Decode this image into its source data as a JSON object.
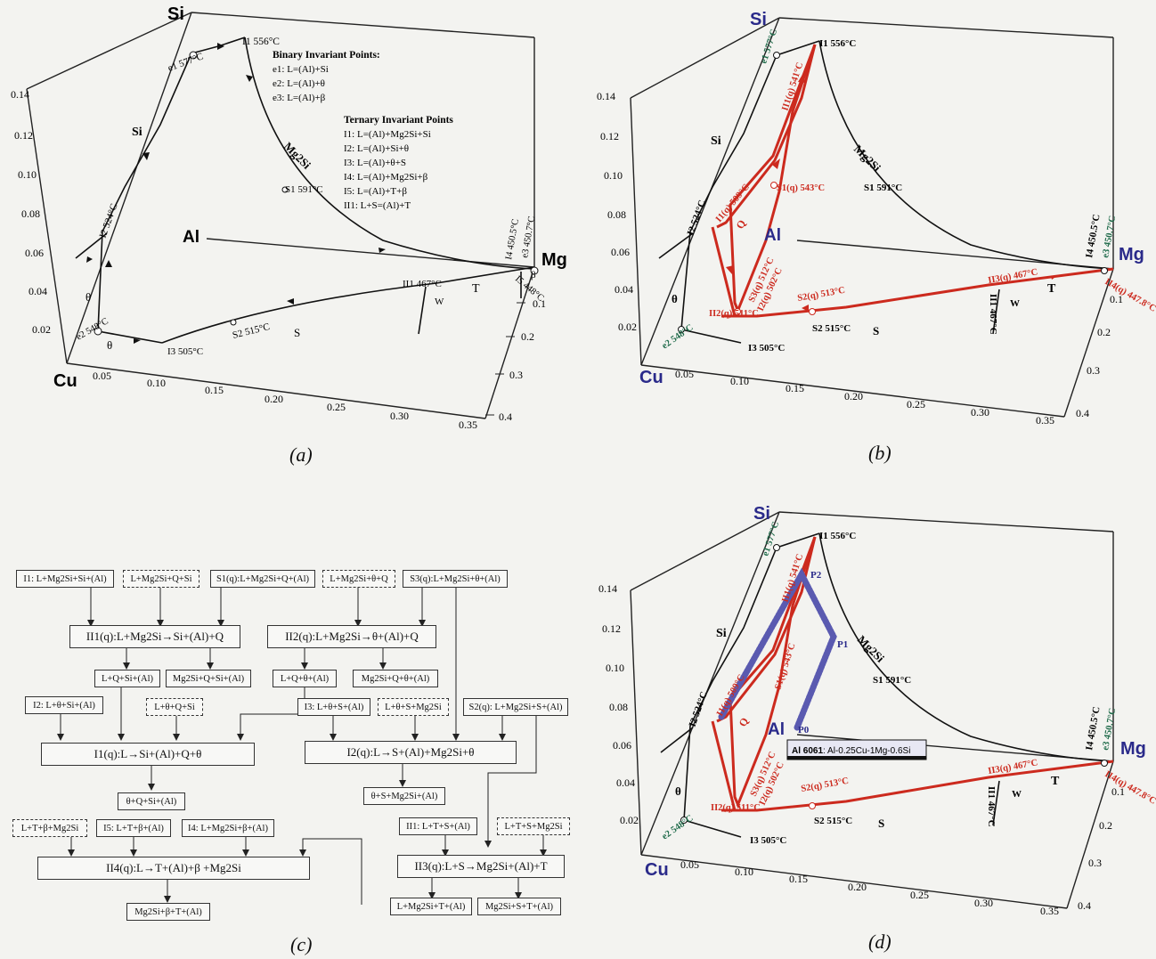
{
  "panel_a": {
    "caption": "(a)",
    "vertices": {
      "si": "Si",
      "cu": "Cu",
      "mg": "Mg",
      "al": "Al"
    },
    "si_axis_ticks": [
      "0.14",
      "0.12",
      "0.10",
      "0.08",
      "0.06",
      "0.04",
      "0.02"
    ],
    "cu_axis_ticks": [
      "0.05",
      "0.10",
      "0.15",
      "0.20",
      "0.25",
      "0.30",
      "0.35"
    ],
    "mg_axis_ticks": [
      "0.1",
      "0.2",
      "0.3",
      "0.4"
    ],
    "binary_title": "Binary Invariant Points:",
    "binary": [
      "e1: L=(Al)+Si",
      "e2: L=(Al)+θ",
      "e3: L=(Al)+β"
    ],
    "ternary_title": "Ternary Invariant Points",
    "ternary": [
      "I1: L=(Al)+Mg2Si+Si",
      "I2: L=(Al)+Si+θ",
      "I3: L=(Al)+θ+S",
      "I4: L=(Al)+Mg2Si+β",
      "I5: L=(Al)+T+β",
      "II1: L+S=(Al)+T"
    ],
    "points": {
      "i1": "I1 556°C",
      "e1": "e1 577°C",
      "i2": "I2 524°C",
      "e2": "e2 548°C",
      "i3": "I3 505°C",
      "s2": "S2 515°C",
      "s1": "S1 591°C",
      "ii1": "II1 467°C",
      "i4": "I4 450.5°C",
      "e3": "e3 450.7°C",
      "i5": "I5 448°C"
    },
    "phases": {
      "si": "Si",
      "mg2si": "Mg2Si",
      "theta": "θ",
      "theta2": "θ",
      "s": "S",
      "t": "T",
      "w": "W",
      "beta": "β"
    }
  },
  "panel_b": {
    "caption": "(b)",
    "vertices": {
      "si": "Si",
      "cu": "Cu",
      "mg": "Mg",
      "al": "Al"
    },
    "si_axis_ticks": [
      "0.14",
      "0.12",
      "0.10",
      "0.08",
      "0.06",
      "0.04",
      "0.02"
    ],
    "cu_axis_ticks": [
      "0.05",
      "0.10",
      "0.15",
      "0.20",
      "0.25",
      "0.30",
      "0.35"
    ],
    "mg_axis_ticks": [
      "0.1",
      "0.2",
      "0.3",
      "0.4"
    ],
    "black_labels": {
      "i1": "I1 556°C",
      "i2": "I2 524°C",
      "i3": "I3 505°C",
      "s2": "S2 515°C",
      "s1": "S1 591°C",
      "ii1": "II1 467°C",
      "i4": "I4 450.5°C",
      "si": "Si",
      "mg2si": "Mg2Si",
      "theta": "θ",
      "s": "S",
      "t": "T",
      "w": "W"
    },
    "green_labels": {
      "e1": "e1 577°C",
      "e2": "e2 548°C",
      "e3": "e3 450.7°C"
    },
    "red_labels": {
      "ii1q": "II1(q) 541°C",
      "s1q": "S1(q) 543°C",
      "i1q": "I1(q) 509°C",
      "ii2q": "II2(q) 511°C",
      "s3q": "S3(q) 512°C",
      "i2q": "I2(q) 502°C",
      "s2q": "S2(q) 513°C",
      "ii3q": "II3(q) 467°C",
      "ii4q": "II4(q) 447.8°C",
      "q": "Q"
    }
  },
  "panel_c": {
    "caption": "(c)",
    "row1": [
      "I1: L+Mg2Si+Si+(Al)",
      "L+Mg2Si+Q+Si",
      "S1(q):L+Mg2Si+Q+(Al)",
      "L+Mg2Si+θ+Q",
      "S3(q):L+Mg2Si+θ+(Al)"
    ],
    "reaction_ii1q": "II1(q):L+Mg2Si→Si+(Al)+Q",
    "reaction_ii2q": "II2(q):L+Mg2Si→θ+(Al)+Q",
    "row3": [
      "L+Q+Si+(Al)",
      "Mg2Si+Q+Si+(Al)",
      "L+Q+θ+(Al)",
      "Mg2Si+Q+θ+(Al)"
    ],
    "row4": [
      "I2: L+θ+Si+(Al)",
      "L+θ+Q+Si",
      "I3: L+θ+S+(Al)",
      "L+θ+S+Mg2Si",
      "S2(q): L+Mg2Si+S+(Al)"
    ],
    "reaction_i1q": "I1(q):L→Si+(Al)+Q+θ",
    "reaction_i2q": "I2(q):L→S+(Al)+Mg2Si+θ",
    "row6": [
      "θ+Q+Si+(Al)",
      "θ+S+Mg2Si+(Al)"
    ],
    "row7": [
      "L+T+β+Mg2Si",
      "I5: L+T+β+(Al)",
      "I4: L+Mg2Si+β+(Al)",
      "II1: L+T+S+(Al)",
      "L+T+S+Mg2Si"
    ],
    "reaction_ii4q": "II4(q):L→T+(Al)+β +Mg2Si",
    "reaction_ii3q": "II3(q):L+S→Mg2Si+(Al)+T",
    "row9": [
      "Mg2Si+β+T+(Al)",
      "L+Mg2Si+T+(Al)",
      "Mg2Si+S+T+(Al)"
    ]
  },
  "panel_d": {
    "caption": "(d)",
    "vertices": {
      "si": "Si",
      "cu": "Cu",
      "mg": "Mg",
      "al": "Al"
    },
    "si_axis_ticks": [
      "0.14",
      "0.12",
      "0.10",
      "0.08",
      "0.06",
      "0.04",
      "0.02"
    ],
    "cu_axis_ticks": [
      "0.05",
      "0.10",
      "0.15",
      "0.20",
      "0.25",
      "0.30",
      "0.35"
    ],
    "mg_axis_ticks": [
      "0.1",
      "0.2",
      "0.3",
      "0.4"
    ],
    "path_points": [
      "P0",
      "P1",
      "P2"
    ],
    "alloy_label_bold": "Al 6061",
    "alloy_label_rest": ": Al-0.25Cu-1Mg-0.6Si"
  },
  "colors": {
    "red": "#cc2a1e",
    "green": "#1f6b4a",
    "navy": "#2a2a8a",
    "blue_path": "#5a5ab0"
  }
}
